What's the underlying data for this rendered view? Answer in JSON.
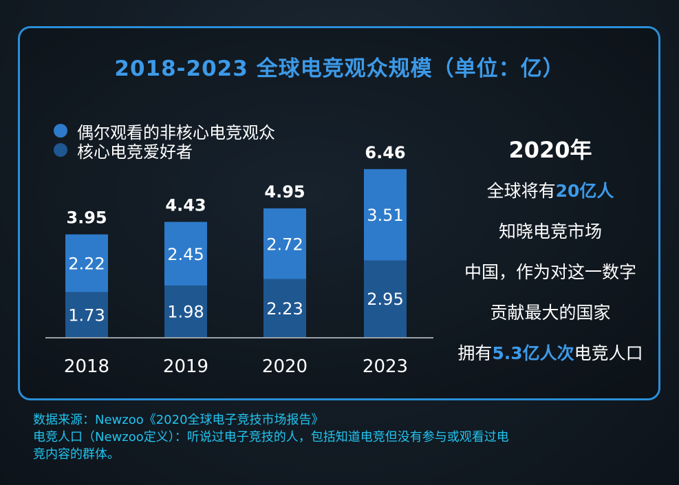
{
  "chart_data": {
    "type": "bar",
    "stacked": true,
    "title": "2018-2023 全球电竞观众规模（单位：亿）",
    "categories": [
      "2018",
      "2019",
      "2020",
      "2023"
    ],
    "series": [
      {
        "name": "核心电竞爱好者",
        "values": [
          1.73,
          1.98,
          2.23,
          2.95
        ],
        "color": "#1f5791"
      },
      {
        "name": "偶尔观看的非核心电竞观众",
        "values": [
          2.22,
          2.45,
          2.72,
          3.51
        ],
        "color": "#2e7bcb"
      }
    ],
    "totals": [
      3.95,
      4.43,
      4.95,
      6.46
    ],
    "value_labels": {
      "core": [
        "1.73",
        "1.98",
        "2.23",
        "2.95"
      ],
      "casual": [
        "2.22",
        "2.45",
        "2.72",
        "3.51"
      ],
      "totals": [
        "3.95",
        "4.43",
        "4.95",
        "6.46"
      ]
    },
    "ylim": [
      0,
      7.5
    ],
    "grid": false,
    "legend_position": "top-left",
    "legend": [
      {
        "label": "偶尔观看的非核心电竞观众",
        "color": "#2e7bcb"
      },
      {
        "label": "核心电竞爱好者",
        "color": "#1f5791"
      }
    ]
  },
  "side": {
    "year": "2020年",
    "line1_pre": "全球将有",
    "line1_hl": "20亿人",
    "line2": "知晓电竞市场",
    "line3": "中国，作为对这一数字",
    "line4": "贡献最大的国家",
    "line5_pre": "拥有",
    "line5_hl": "5.3亿人次",
    "line5_post": "电竞人口"
  },
  "notes": {
    "source": "数据来源：Newzoo《2020全球电子竞技市场报告》",
    "definition_line1": "电竞人口（Newzoo定义）：听说过电子竞技的人，包括知道电竞但没有参与或观看过电",
    "definition_line2": "竞内容的群体。"
  },
  "colors": {
    "border": "#2a8fd8",
    "title": "#3d9ae8",
    "highlight": "#3d9ae8",
    "notes": "#22c4ef",
    "bar_core": "#1f5791",
    "bar_casual": "#2e7bcb"
  }
}
